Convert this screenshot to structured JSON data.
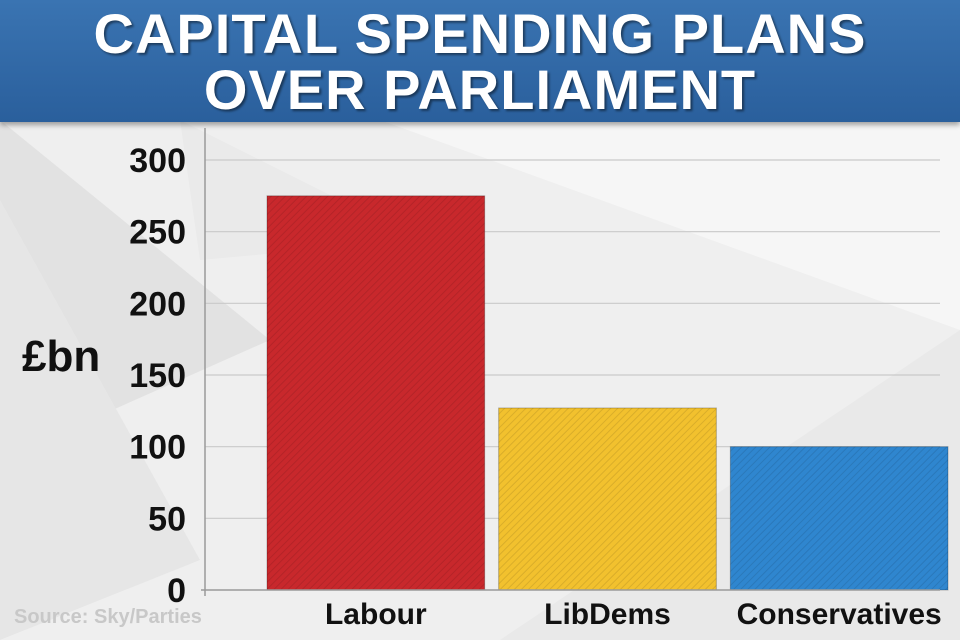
{
  "header": {
    "title_line1": "CAPITAL SPENDING PLANS",
    "title_line2": "OVER PARLIAMENT"
  },
  "source": "Source: Sky/Parties",
  "chart_data": {
    "type": "bar",
    "title": "CAPITAL SPENDING PLANS OVER PARLIAMENT",
    "ylabel": "£bn",
    "xlabel": "",
    "categories": [
      "Labour",
      "LibDems",
      "Conservatives"
    ],
    "values": [
      275,
      127,
      100
    ],
    "colors": [
      "#c8282c",
      "#f2c12e",
      "#2f86cf"
    ],
    "ylim": [
      0,
      300
    ],
    "yticks": [
      0,
      50,
      100,
      150,
      200,
      250,
      300
    ],
    "grid": true,
    "legend": "none"
  },
  "colors": {
    "header": "#2f67a6",
    "background": "#efefef",
    "grid": "#c9c9c9"
  }
}
